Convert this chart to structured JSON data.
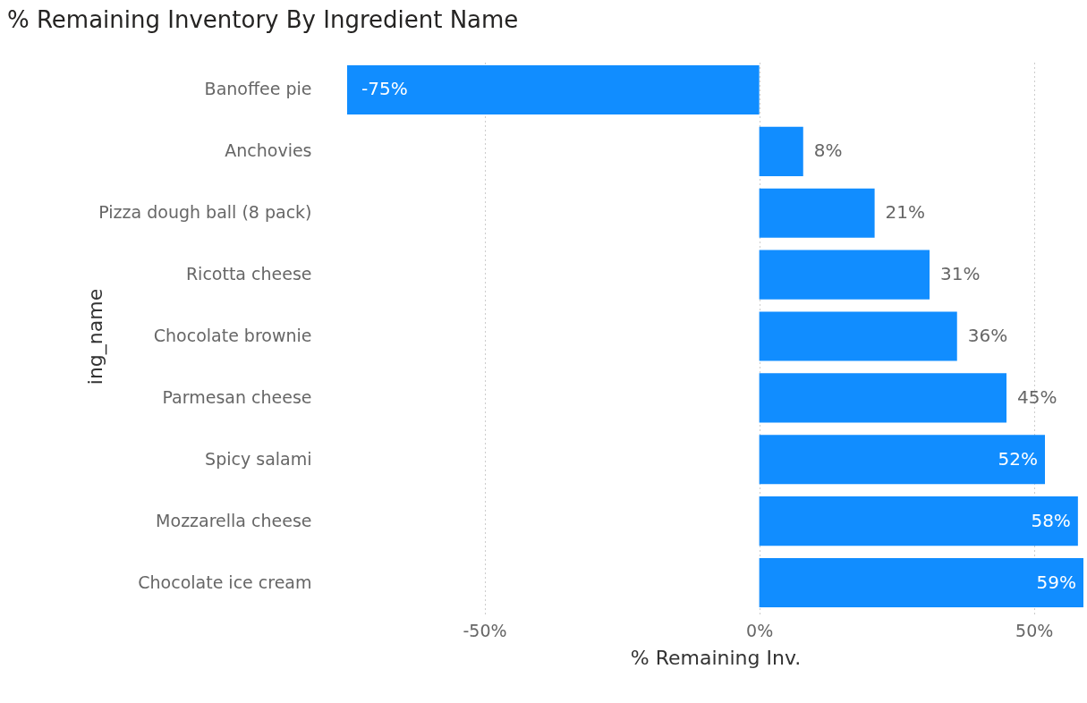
{
  "chart_data": {
    "type": "bar",
    "orientation": "horizontal",
    "title": "% Remaining Inventory By Ingredient Name",
    "xlabel": "% Remaining Inv.",
    "ylabel": "ing_name",
    "categories": [
      "Banoffee pie",
      "Anchovies",
      "Pizza dough ball (8 pack)",
      "Ricotta cheese",
      "Chocolate brownie",
      "Parmesan cheese",
      "Spicy salami",
      "Mozzarella cheese",
      "Chocolate ice cream"
    ],
    "values": [
      -75,
      8,
      21,
      31,
      36,
      45,
      52,
      58,
      59
    ],
    "value_labels": [
      "-75%",
      "8%",
      "21%",
      "31%",
      "36%",
      "45%",
      "52%",
      "58%",
      "59%"
    ],
    "color": "#118dff",
    "xlim": [
      -75,
      59
    ],
    "xticks": [
      {
        "value": -50,
        "label": "-50%"
      },
      {
        "value": 0,
        "label": "0%"
      },
      {
        "value": 50,
        "label": "50%"
      }
    ],
    "grid": "x"
  }
}
